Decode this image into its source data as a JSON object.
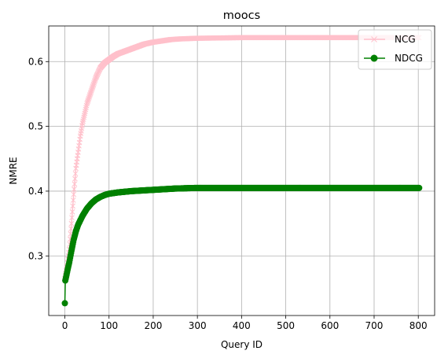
{
  "chart_data": {
    "type": "line",
    "title": "moocs",
    "xlabel": "Query ID",
    "ylabel": "NMRE",
    "xlim": [
      -36.5,
      837
    ],
    "ylim": [
      0.208,
      0.655
    ],
    "xticks": [
      0,
      100,
      200,
      300,
      400,
      500,
      600,
      700,
      800
    ],
    "yticks": [
      0.3,
      0.4,
      0.5,
      0.6
    ],
    "ytick_labels": [
      "0.3",
      "0.4",
      "0.5",
      "0.6"
    ],
    "grid": true,
    "legend": "top-right",
    "x_range": [
      0,
      802
    ],
    "series": [
      {
        "name": "NCG",
        "color": "#ffc0cb",
        "marker": "x",
        "anchors": [
          [
            0,
            0.265
          ],
          [
            5,
            0.285
          ],
          [
            10,
            0.31
          ],
          [
            15,
            0.35
          ],
          [
            20,
            0.395
          ],
          [
            25,
            0.435
          ],
          [
            30,
            0.46
          ],
          [
            35,
            0.485
          ],
          [
            40,
            0.505
          ],
          [
            45,
            0.52
          ],
          [
            50,
            0.535
          ],
          [
            60,
            0.555
          ],
          [
            70,
            0.575
          ],
          [
            80,
            0.59
          ],
          [
            90,
            0.598
          ],
          [
            100,
            0.603
          ],
          [
            110,
            0.608
          ],
          [
            120,
            0.612
          ],
          [
            140,
            0.617
          ],
          [
            160,
            0.622
          ],
          [
            180,
            0.627
          ],
          [
            200,
            0.63
          ],
          [
            220,
            0.632
          ],
          [
            240,
            0.634
          ],
          [
            260,
            0.635
          ],
          [
            300,
            0.636
          ],
          [
            400,
            0.637
          ],
          [
            802,
            0.637
          ]
        ]
      },
      {
        "name": "NDCG",
        "color": "#008000",
        "marker": "o",
        "anchors": [
          [
            0,
            0.227
          ],
          [
            1,
            0.262
          ],
          [
            3,
            0.268
          ],
          [
            6,
            0.278
          ],
          [
            10,
            0.29
          ],
          [
            15,
            0.308
          ],
          [
            20,
            0.325
          ],
          [
            25,
            0.338
          ],
          [
            30,
            0.348
          ],
          [
            40,
            0.362
          ],
          [
            50,
            0.373
          ],
          [
            60,
            0.381
          ],
          [
            70,
            0.387
          ],
          [
            80,
            0.391
          ],
          [
            90,
            0.394
          ],
          [
            100,
            0.396
          ],
          [
            120,
            0.398
          ],
          [
            150,
            0.4
          ],
          [
            200,
            0.402
          ],
          [
            250,
            0.404
          ],
          [
            300,
            0.405
          ],
          [
            802,
            0.405
          ]
        ]
      }
    ]
  }
}
